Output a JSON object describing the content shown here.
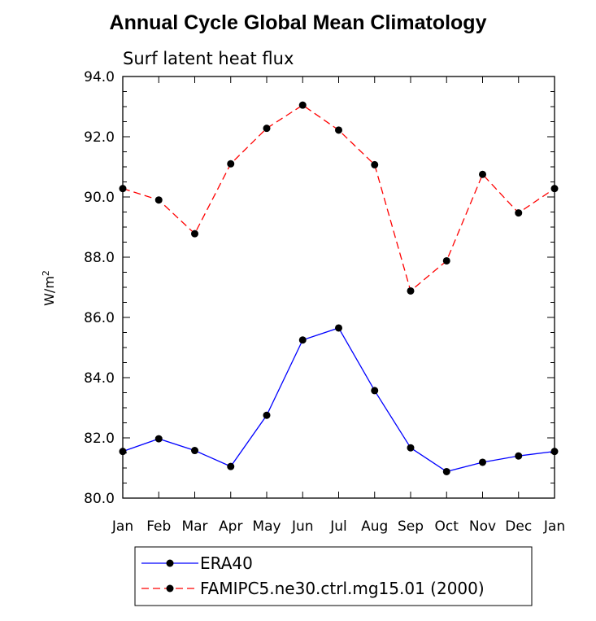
{
  "chart_data": {
    "type": "line",
    "title": "Annual Cycle Global Mean Climatology",
    "subtitle": "Surf latent heat flux",
    "ylabel": "W/m",
    "ylabel_superscript": "2",
    "xlabel": "",
    "categories": [
      "Jan",
      "Feb",
      "Mar",
      "Apr",
      "May",
      "Jun",
      "Jul",
      "Aug",
      "Sep",
      "Oct",
      "Nov",
      "Dec",
      "Jan"
    ],
    "ylim": [
      80.0,
      94.0
    ],
    "yticks": [
      "80.0",
      "82.0",
      "84.0",
      "86.0",
      "88.0",
      "90.0",
      "92.0",
      "94.0"
    ],
    "grid": false,
    "legend_position": "bottom",
    "series": [
      {
        "name": "ERA40",
        "color": "#0000ff",
        "dash": "solid",
        "values": [
          81.55,
          81.97,
          81.58,
          81.05,
          82.75,
          85.25,
          85.65,
          83.57,
          81.67,
          80.88,
          81.19,
          81.4,
          81.55
        ]
      },
      {
        "name": "FAMIPC5.ne30.ctrl.mg15.01 (2000)",
        "color": "#ff0000",
        "dash": "dashed",
        "values": [
          90.28,
          89.9,
          88.78,
          91.1,
          92.28,
          93.05,
          92.22,
          91.07,
          86.88,
          87.88,
          90.75,
          89.47,
          90.28
        ]
      }
    ]
  }
}
